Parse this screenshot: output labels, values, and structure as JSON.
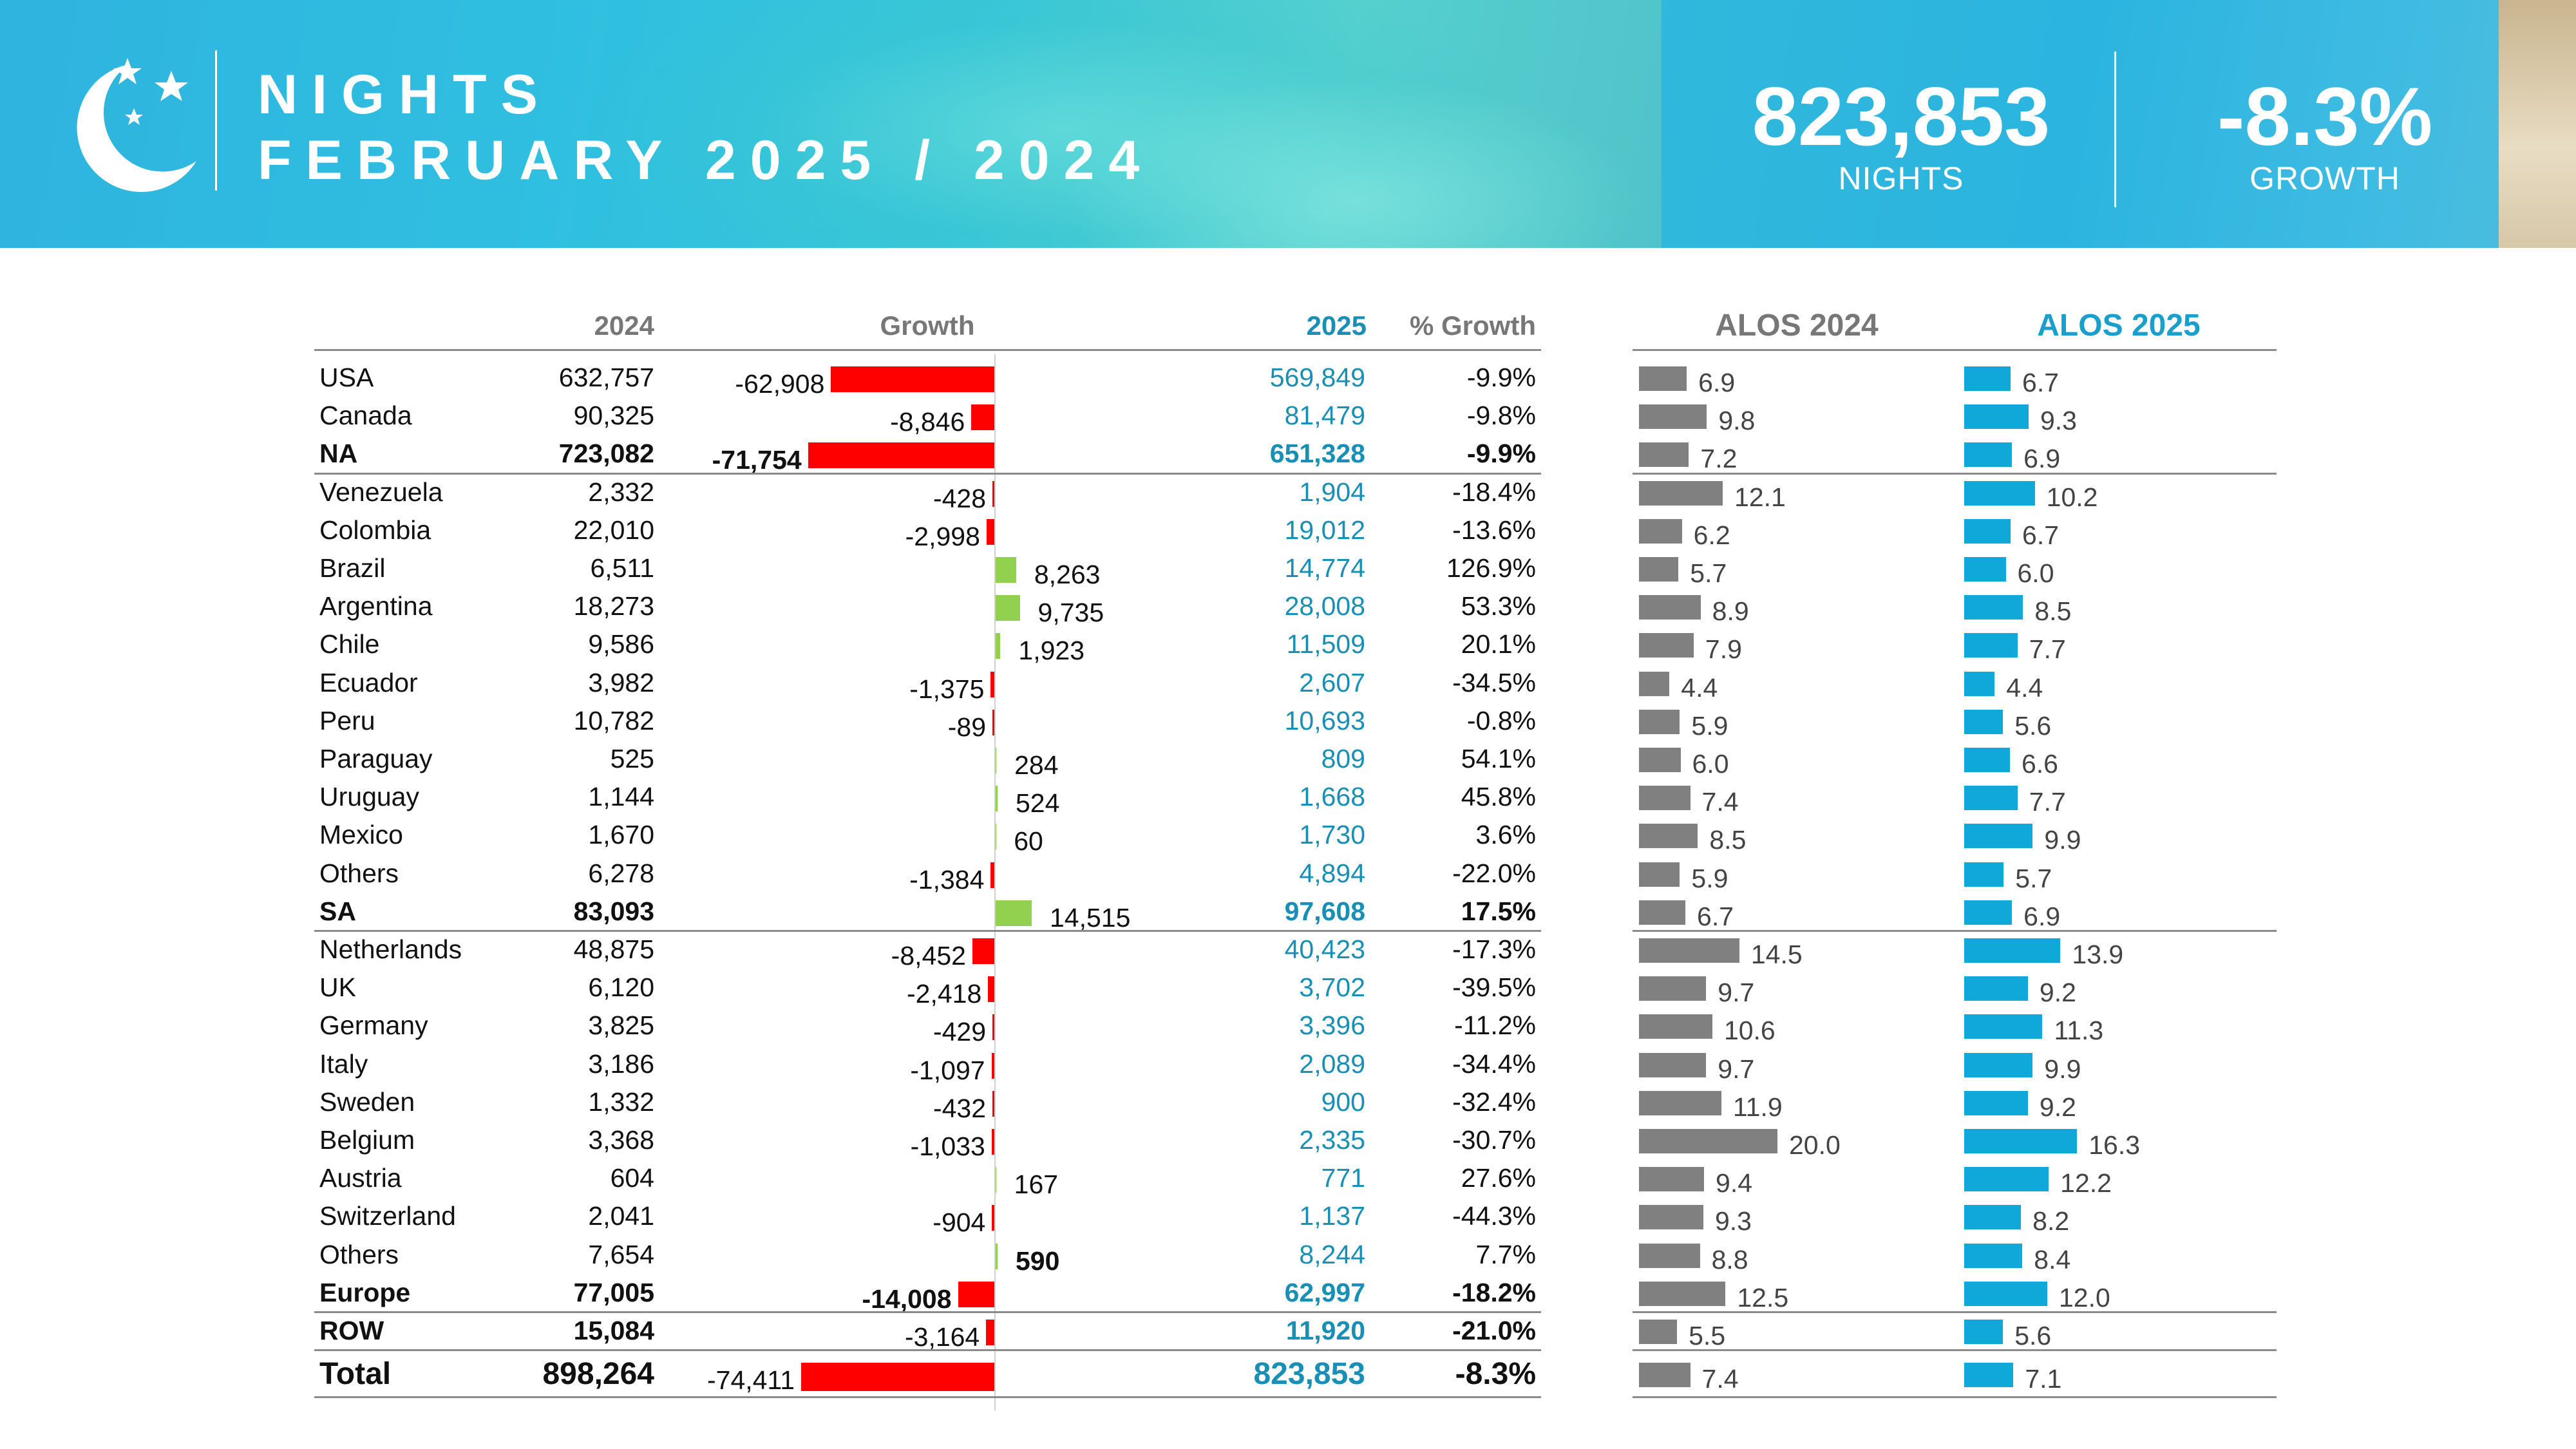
{
  "header": {
    "line1": "NIGHTS",
    "line2": "FEBRUARY 2025 / 2024",
    "kpi_nights_value": "823,853",
    "kpi_nights_label": "NIGHTS",
    "kpi_growth_value": "-8.3%",
    "kpi_growth_label": "GROWTH"
  },
  "columns": {
    "y2024": "2024",
    "growth": "Growth",
    "y2025": "2025",
    "pct_growth": "% Growth",
    "alos2024": "ALOS 2024",
    "alos2025": "ALOS 2025"
  },
  "colors": {
    "negative": "#ff0000",
    "positive": "#92d050",
    "alos2024": "#808080",
    "alos2025": "#0fa8d8",
    "accent": "#1a8fb5"
  },
  "chart_data": {
    "type": "table",
    "title": "NIGHTS FEBRUARY 2025 / 2024",
    "growth_bar_range": [
      -74411,
      14515
    ],
    "alos_bar_range": [
      0,
      20.0
    ],
    "rows": [
      {
        "name": "USA",
        "v2024": "632,757",
        "growth": -62908,
        "growth_label": "-62,908",
        "v2025": "569,849",
        "pct": "-9.9%",
        "alos2024": 6.9,
        "alos2025": 6.7,
        "bold": false
      },
      {
        "name": "Canada",
        "v2024": "90,325",
        "growth": -8846,
        "growth_label": "-8,846",
        "v2025": "81,479",
        "pct": "-9.8%",
        "alos2024": 9.8,
        "alos2025": 9.3,
        "bold": false
      },
      {
        "name": "NA",
        "v2024": "723,082",
        "growth": -71754,
        "growth_label": "-71,754",
        "v2025": "651,328",
        "pct": "-9.9%",
        "alos2024": 7.2,
        "alos2025": 6.9,
        "bold": true
      },
      {
        "name": "Venezuela",
        "v2024": "2,332",
        "growth": -428,
        "growth_label": "-428",
        "v2025": "1,904",
        "pct": "-18.4%",
        "alos2024": 12.1,
        "alos2025": 10.2,
        "bold": false
      },
      {
        "name": "Colombia",
        "v2024": "22,010",
        "growth": -2998,
        "growth_label": "-2,998",
        "v2025": "19,012",
        "pct": "-13.6%",
        "alos2024": 6.2,
        "alos2025": 6.7,
        "bold": false
      },
      {
        "name": "Brazil",
        "v2024": "6,511",
        "growth": 8263,
        "growth_label": "8,263",
        "v2025": "14,774",
        "pct": "126.9%",
        "alos2024": 5.7,
        "alos2025": 6.0,
        "bold": false
      },
      {
        "name": "Argentina",
        "v2024": "18,273",
        "growth": 9735,
        "growth_label": "9,735",
        "v2025": "28,008",
        "pct": "53.3%",
        "alos2024": 8.9,
        "alos2025": 8.5,
        "bold": false
      },
      {
        "name": "Chile",
        "v2024": "9,586",
        "growth": 1923,
        "growth_label": "1,923",
        "v2025": "11,509",
        "pct": "20.1%",
        "alos2024": 7.9,
        "alos2025": 7.7,
        "bold": false
      },
      {
        "name": "Ecuador",
        "v2024": "3,982",
        "growth": -1375,
        "growth_label": "-1,375",
        "v2025": "2,607",
        "pct": "-34.5%",
        "alos2024": 4.4,
        "alos2025": 4.4,
        "bold": false
      },
      {
        "name": "Peru",
        "v2024": "10,782",
        "growth": -89,
        "growth_label": "-89",
        "v2025": "10,693",
        "pct": "-0.8%",
        "alos2024": 5.9,
        "alos2025": 5.6,
        "bold": false
      },
      {
        "name": "Paraguay",
        "v2024": "525",
        "growth": 284,
        "growth_label": "284",
        "v2025": "809",
        "pct": "54.1%",
        "alos2024": 6.0,
        "alos2025": 6.6,
        "bold": false
      },
      {
        "name": "Uruguay",
        "v2024": "1,144",
        "growth": 524,
        "growth_label": "524",
        "v2025": "1,668",
        "pct": "45.8%",
        "alos2024": 7.4,
        "alos2025": 7.7,
        "bold": false
      },
      {
        "name": "Mexico",
        "v2024": "1,670",
        "growth": 60,
        "growth_label": "60",
        "v2025": "1,730",
        "pct": "3.6%",
        "alos2024": 8.5,
        "alos2025": 9.9,
        "bold": false
      },
      {
        "name": "Others",
        "v2024": "6,278",
        "growth": -1384,
        "growth_label": "-1,384",
        "v2025": "4,894",
        "pct": "-22.0%",
        "alos2024": 5.9,
        "alos2025": 5.7,
        "bold": false
      },
      {
        "name": "SA",
        "v2024": "83,093",
        "growth": 14515,
        "growth_label": "14,515",
        "v2025": "97,608",
        "pct": "17.5%",
        "alos2024": 6.7,
        "alos2025": 6.9,
        "bold": true,
        "growth_bold": false
      },
      {
        "name": "Netherlands",
        "v2024": "48,875",
        "growth": -8452,
        "growth_label": "-8,452",
        "v2025": "40,423",
        "pct": "-17.3%",
        "alos2024": 14.5,
        "alos2025": 13.9,
        "bold": false
      },
      {
        "name": "UK",
        "v2024": "6,120",
        "growth": -2418,
        "growth_label": "-2,418",
        "v2025": "3,702",
        "pct": "-39.5%",
        "alos2024": 9.7,
        "alos2025": 9.2,
        "bold": false
      },
      {
        "name": "Germany",
        "v2024": "3,825",
        "growth": -429,
        "growth_label": "-429",
        "v2025": "3,396",
        "pct": "-11.2%",
        "alos2024": 10.6,
        "alos2025": 11.3,
        "bold": false
      },
      {
        "name": "Italy",
        "v2024": "3,186",
        "growth": -1097,
        "growth_label": "-1,097",
        "v2025": "2,089",
        "pct": "-34.4%",
        "alos2024": 9.7,
        "alos2025": 9.9,
        "bold": false
      },
      {
        "name": "Sweden",
        "v2024": "1,332",
        "growth": -432,
        "growth_label": "-432",
        "v2025": "900",
        "pct": "-32.4%",
        "alos2024": 11.9,
        "alos2025": 9.2,
        "bold": false
      },
      {
        "name": "Belgium",
        "v2024": "3,368",
        "growth": -1033,
        "growth_label": "-1,033",
        "v2025": "2,335",
        "pct": "-30.7%",
        "alos2024": 20.0,
        "alos2025": 16.3,
        "bold": false
      },
      {
        "name": "Austria",
        "v2024": "604",
        "growth": 167,
        "growth_label": "167",
        "v2025": "771",
        "pct": "27.6%",
        "alos2024": 9.4,
        "alos2025": 12.2,
        "bold": false
      },
      {
        "name": "Switzerland",
        "v2024": "2,041",
        "growth": -904,
        "growth_label": "-904",
        "v2025": "1,137",
        "pct": "-44.3%",
        "alos2024": 9.3,
        "alos2025": 8.2,
        "bold": false
      },
      {
        "name": "Others",
        "v2024": "7,654",
        "growth": 590,
        "growth_label": "590",
        "v2025": "8,244",
        "pct": "7.7%",
        "alos2024": 8.8,
        "alos2025": 8.4,
        "bold": false,
        "growth_bold": true
      },
      {
        "name": "Europe",
        "v2024": "77,005",
        "growth": -14008,
        "growth_label": "-14,008",
        "v2025": "62,997",
        "pct": "-18.2%",
        "alos2024": 12.5,
        "alos2025": 12.0,
        "bold": true
      },
      {
        "name": "ROW",
        "v2024": "15,084",
        "growth": -3164,
        "growth_label": "-3,164",
        "v2025": "11,920",
        "pct": "-21.0%",
        "alos2024": 5.5,
        "alos2025": 5.6,
        "bold": true,
        "growth_bold": false
      },
      {
        "name": "Total",
        "v2024": "898,264",
        "growth": -74411,
        "growth_label": "-74,411",
        "v2025": "823,853",
        "pct": "-8.3%",
        "alos2024": 7.4,
        "alos2025": 7.1,
        "bold": true,
        "total": true,
        "growth_bold": false
      }
    ]
  }
}
